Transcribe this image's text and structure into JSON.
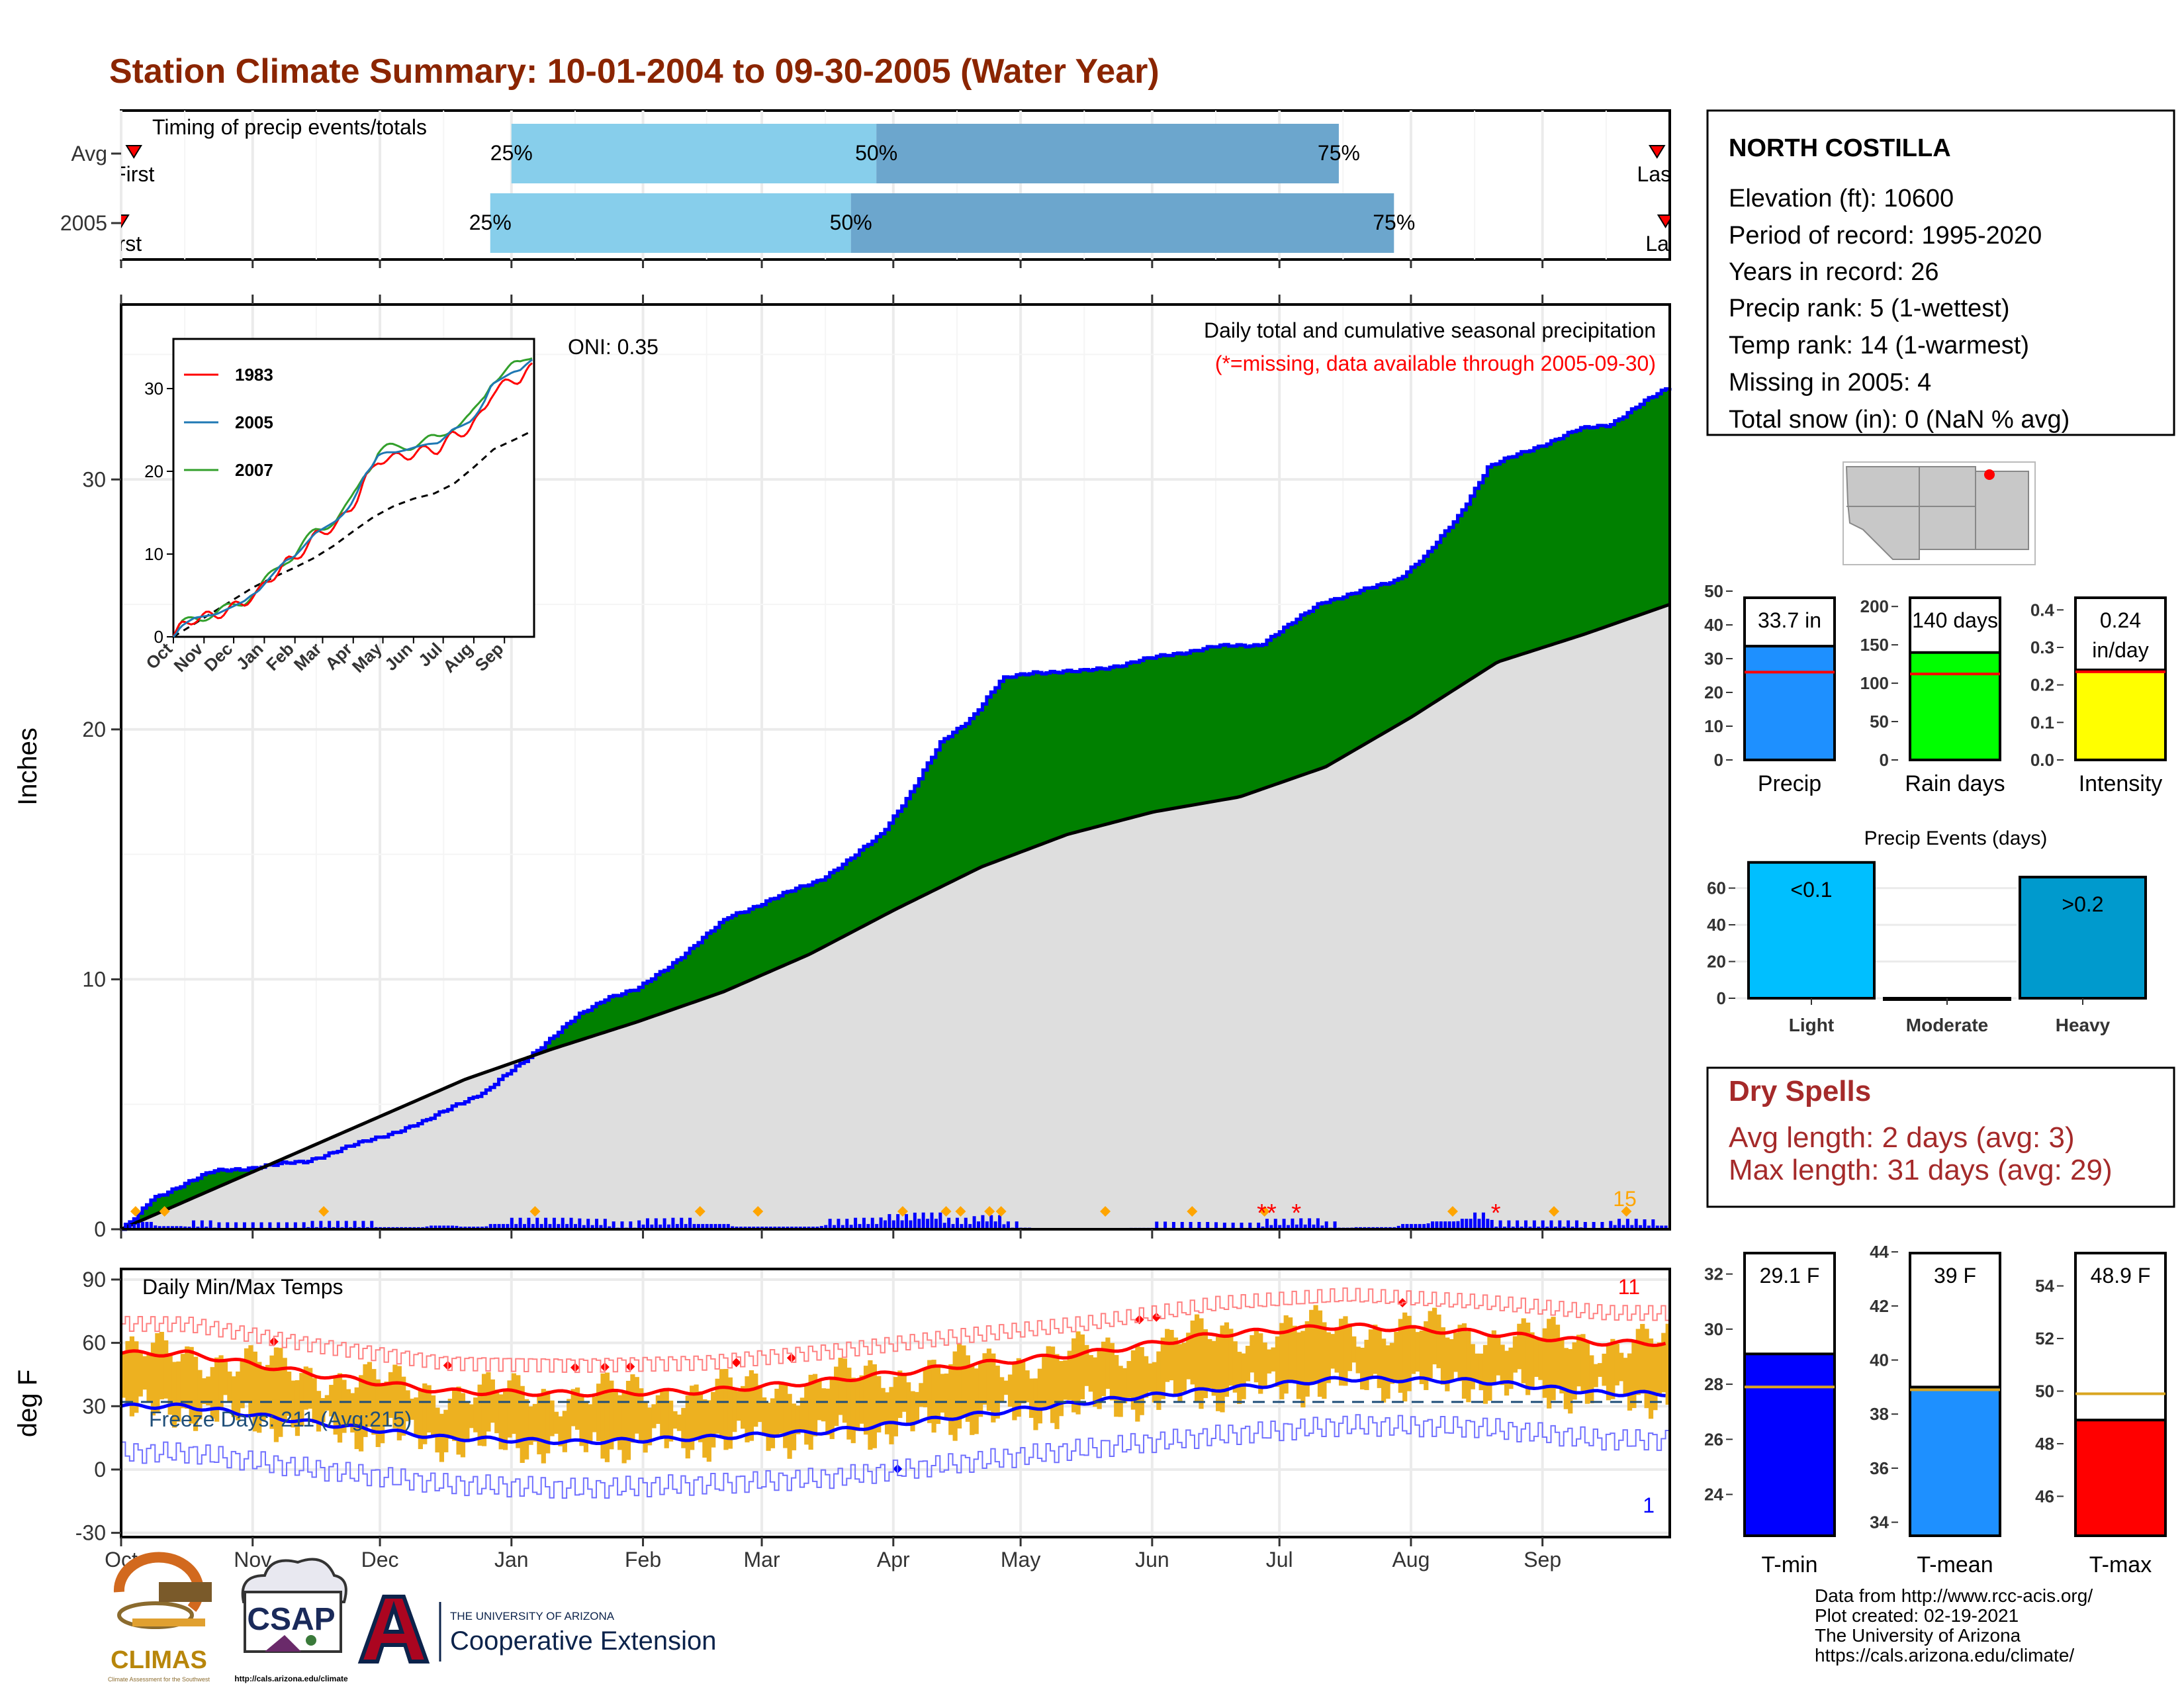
{
  "title": "Station Climate Summary: 10-01-2004 to 09-30-2005 (Water Year)",
  "colors": {
    "title": "#8B2500",
    "precip_fill": "#008000",
    "precip_line": "#0000FF",
    "avg_fill": "#DEDEDE",
    "timing_light": "#87CEEB",
    "timing_dark": "#6CA6CD",
    "temp_bar": "#EDB120",
    "tmax_avg": "#FF0000",
    "tmin_avg": "#0000FF",
    "dry_spells": "#A52A2A",
    "precip_bar": "#1E90FF",
    "raindays_bar": "#00FF00",
    "intensity_bar": "#FFFF00",
    "events_light": "#00BFFF",
    "events_heavy": "#009ACD",
    "tmin_bar": "#0000FF",
    "tmean_bar": "#1E90FF",
    "tmax_bar": "#FF0000",
    "avg_line": "#DAA520"
  },
  "timing": {
    "title": "Timing of precip events/totals",
    "rows": [
      {
        "label": "Avg",
        "first": "First",
        "last": "Last",
        "p25": "25%",
        "p50": "50%",
        "p75": "75%",
        "first_doy": 3,
        "p25_doy": 92,
        "p50_doy": 178,
        "p75_doy": 287,
        "last_doy": 362
      },
      {
        "label": "2005",
        "first": "First",
        "last": "Last",
        "p25": "25%",
        "p50": "50%",
        "p75": "75%",
        "first_doy": 0,
        "p25_doy": 87,
        "p50_doy": 172,
        "p75_doy": 300,
        "last_doy": 364
      }
    ]
  },
  "months": [
    "Oct",
    "Nov",
    "Dec",
    "Jan",
    "Feb",
    "Mar",
    "Apr",
    "May",
    "Jun",
    "Jul",
    "Aug",
    "Sep"
  ],
  "precip_panel": {
    "ylabel": "Inches",
    "yticks": [
      0,
      10,
      20,
      30
    ],
    "ylim": [
      0,
      37
    ],
    "oni": "ONI: 0.35",
    "subtitle": "Daily total and cumulative seasonal precipitation",
    "missing_note": "(*=missing, data available through 2005-09-30)",
    "max_daily_label": "15"
  },
  "inset": {
    "yticks": [
      0,
      10,
      20,
      30
    ],
    "legend": [
      {
        "name": "1983",
        "color": "#FF0000"
      },
      {
        "name": "2005",
        "color": "#1F78B4"
      },
      {
        "name": "2007",
        "color": "#33A02C"
      }
    ],
    "months": [
      "Oct",
      "Nov",
      "Dec",
      "Jan",
      "Feb",
      "Mar",
      "Apr",
      "May",
      "Jun",
      "Jul",
      "Aug",
      "Sep"
    ]
  },
  "temp_panel": {
    "ylabel": "deg F",
    "title": "Daily Min/Max Temps",
    "yticks": [
      -30,
      0,
      30,
      60,
      90
    ],
    "ylim": [
      -32,
      95
    ],
    "freeze": "Freeze Days: 211 (Avg:215)",
    "record_high_count": "11",
    "record_low_count": "1",
    "freeze_line": 32
  },
  "station": {
    "name": "NORTH COSTILLA",
    "lines": [
      "Elevation (ft): 10600",
      "Period of record: 1995-2020",
      "Years in record: 26",
      "Precip rank: 5 (1-wettest)",
      "Temp rank: 14 (1-warmest)",
      "Missing in 2005: 4",
      "Total snow (in): 0 (NaN % avg)"
    ]
  },
  "chart_data": [
    {
      "type": "area",
      "title": "Daily total and cumulative seasonal precipitation",
      "ylabel": "Inches",
      "ylim": [
        0,
        37
      ],
      "x_unit": "day of water year",
      "cumulative_2005": [
        [
          0,
          0
        ],
        [
          5,
          0.5
        ],
        [
          10,
          1.2
        ],
        [
          20,
          1.8
        ],
        [
          30,
          2.3
        ],
        [
          45,
          2.5
        ],
        [
          60,
          2.7
        ],
        [
          75,
          3.3
        ],
        [
          90,
          3.9
        ],
        [
          100,
          4.3
        ],
        [
          110,
          5.0
        ],
        [
          120,
          5.5
        ],
        [
          130,
          6.5
        ],
        [
          140,
          7.5
        ],
        [
          150,
          8.5
        ],
        [
          160,
          9.3
        ],
        [
          170,
          9.6
        ],
        [
          180,
          10.5
        ],
        [
          190,
          11.5
        ],
        [
          200,
          12.5
        ],
        [
          210,
          13.0
        ],
        [
          220,
          13.5
        ],
        [
          230,
          14.0
        ],
        [
          240,
          14.8
        ],
        [
          250,
          15.8
        ],
        [
          260,
          17.5
        ],
        [
          270,
          19.5
        ],
        [
          280,
          20.5
        ],
        [
          290,
          22.0
        ],
        [
          300,
          22.3
        ],
        [
          315,
          22.3
        ],
        [
          330,
          22.6
        ],
        [
          345,
          23.0
        ],
        [
          360,
          23.3
        ],
        [
          375,
          23.4
        ],
        [
          385,
          24.2
        ],
        [
          395,
          25.1
        ],
        [
          405,
          25.4
        ],
        [
          420,
          26.0
        ],
        [
          430,
          27.0
        ],
        [
          440,
          28.5
        ],
        [
          445,
          29.5
        ],
        [
          450,
          30.5
        ],
        [
          460,
          31.0
        ],
        [
          470,
          31.5
        ],
        [
          480,
          32.0
        ],
        [
          490,
          32.2
        ],
        [
          500,
          33.0
        ],
        [
          510,
          33.7
        ]
      ],
      "cumulative_avg": [
        [
          0,
          0
        ],
        [
          30,
          1.5
        ],
        [
          60,
          3.0
        ],
        [
          90,
          4.5
        ],
        [
          120,
          6.0
        ],
        [
          150,
          7.2
        ],
        [
          180,
          8.3
        ],
        [
          210,
          9.5
        ],
        [
          240,
          11.0
        ],
        [
          270,
          12.8
        ],
        [
          300,
          14.5
        ],
        [
          330,
          15.8
        ],
        [
          360,
          16.7
        ],
        [
          390,
          17.3
        ],
        [
          420,
          18.5
        ],
        [
          450,
          20.5
        ],
        [
          480,
          22.7
        ],
        [
          510,
          23.8
        ],
        [
          540,
          25.0
        ],
        [
          365,
          25.3
        ]
      ],
      "daily_max_label": 15,
      "missing_days": [
        "2005-06-29",
        "2005-06-30",
        "2005-07-09",
        "2005-08-17"
      ]
    },
    {
      "type": "line",
      "title": "Daily Min/Max Temps",
      "ylabel": "deg F",
      "ylim": [
        -32,
        95
      ],
      "avg_tmax_monthly": {
        "Oct": 55,
        "Nov": 45,
        "Dec": 37,
        "Jan": 36,
        "Feb": 37,
        "Mar": 42,
        "Apr": 49,
        "May": 55,
        "Jun": 64,
        "Jul": 68,
        "Aug": 65,
        "Sep": 60
      },
      "avg_tmin_monthly": {
        "Oct": 30,
        "Nov": 22,
        "Dec": 15,
        "Jan": 13,
        "Feb": 15,
        "Mar": 18,
        "Apr": 25,
        "May": 32,
        "Jun": 38,
        "Jul": 43,
        "Aug": 42,
        "Sep": 36
      },
      "freeze_days": 211,
      "freeze_days_avg": 215
    },
    {
      "type": "bar",
      "label": "Precip",
      "value_label": "33.7 in",
      "value": 33.7,
      "avg": 26,
      "ylim": [
        0,
        50
      ],
      "yticks": [
        0,
        10,
        20,
        30,
        40,
        50
      ]
    },
    {
      "type": "bar",
      "label": "Rain days",
      "value_label": "140 days",
      "value": 140,
      "avg": 112,
      "ylim": [
        0,
        220
      ],
      "yticks": [
        0,
        50,
        100,
        150,
        200
      ]
    },
    {
      "type": "bar",
      "label": "Intensity",
      "value_label": "0.24 in/day",
      "value": 0.24,
      "avg": 0.235,
      "ylim": [
        0,
        0.45
      ],
      "yticks": [
        "0.0",
        "0.1",
        "0.2",
        "0.3",
        "0.4"
      ]
    },
    {
      "type": "bar",
      "title": "Precip Events (days)",
      "categories": [
        "Light",
        "Moderate",
        "Heavy"
      ],
      "values": [
        74,
        0,
        66
      ],
      "bar_labels": [
        "<0.1",
        "",
        ">0.2"
      ],
      "ylim": [
        0,
        75
      ],
      "yticks": [
        0,
        20,
        40,
        60
      ]
    },
    {
      "type": "bar",
      "label": "T-min",
      "value_label": "29.1 F",
      "value": 29.1,
      "avg": 27.9,
      "ylim": [
        22.5,
        33
      ],
      "yticks": [
        24,
        26,
        28,
        30,
        32
      ]
    },
    {
      "type": "bar",
      "label": "T-mean",
      "value_label": "39 F",
      "value": 39,
      "avg": 38.9,
      "ylim": [
        33.5,
        44.2
      ],
      "yticks": [
        34,
        36,
        38,
        40,
        42,
        44
      ]
    },
    {
      "type": "bar",
      "label": "T-max",
      "value_label": "48.9 F",
      "value": 48.9,
      "avg": 49.9,
      "ylim": [
        44.5,
        55.5
      ],
      "yticks": [
        46,
        48,
        50,
        52,
        54
      ]
    }
  ],
  "dry_spells": {
    "title": "Dry Spells",
    "avg": "Avg length: 2 days (avg: 3)",
    "max": "Max length: 31 days (avg: 29)"
  },
  "bars_top": {
    "labels": [
      "Precip",
      "Rain days",
      "Intensity"
    ],
    "value_labels": [
      "33.7 in",
      "140 days",
      "0.24",
      "in/day"
    ]
  },
  "events": {
    "title": "Precip Events (days)",
    "labels": [
      "Light",
      "Moderate",
      "Heavy"
    ],
    "bar_labels": [
      "<0.1",
      ">0.2"
    ]
  },
  "temp_bars": {
    "labels": [
      "T-min",
      "T-mean",
      "T-max"
    ],
    "value_labels": [
      "29.1 F",
      "39 F",
      "48.9 F"
    ]
  },
  "footer": {
    "credits": [
      "Data from http://www.rcc-acis.org/",
      "Plot created: 02-19-2021",
      "The University of Arizona",
      "https://cals.arizona.edu/climate/"
    ],
    "climas": "CLIMAS",
    "climas_sub": "Climate Assessment for the Southwest",
    "csap": "CSAP",
    "csap_url": "http://cals.arizona.edu/climate",
    "ua_small": "THE UNIVERSITY OF ARIZONA",
    "ua_big": "Cooperative Extension"
  }
}
